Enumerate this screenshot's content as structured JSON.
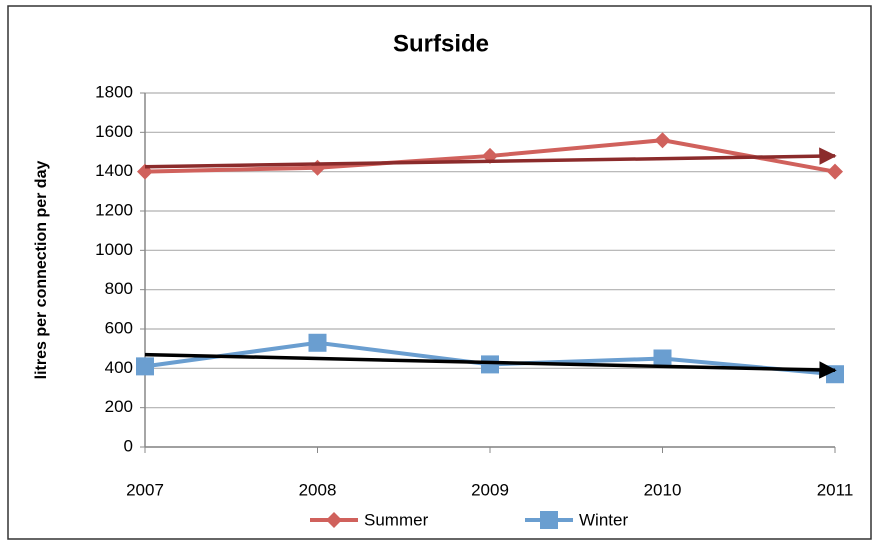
{
  "chart_data": {
    "type": "line",
    "title": "Surfside",
    "y_label": "litres per connection per day",
    "categories": [
      "2007",
      "2008",
      "2009",
      "2010",
      "2011"
    ],
    "series": [
      {
        "name": "Summer",
        "color": "#d0615c",
        "marker": "diamond",
        "values": [
          1400,
          1420,
          1480,
          1560,
          1400
        ],
        "trend": {
          "color": "#8b2b2b",
          "values": [
            1425,
            1480
          ]
        }
      },
      {
        "name": "Winter",
        "color": "#6a9ed0",
        "marker": "square",
        "values": [
          410,
          530,
          420,
          450,
          370
        ],
        "trend": {
          "color": "#000000",
          "values": [
            470,
            390
          ]
        }
      }
    ],
    "ylim": [
      0,
      1800
    ],
    "yticks": [
      0,
      200,
      400,
      600,
      800,
      1000,
      1200,
      1400,
      1600,
      1800
    ],
    "grid": true,
    "legend": "bottom"
  }
}
